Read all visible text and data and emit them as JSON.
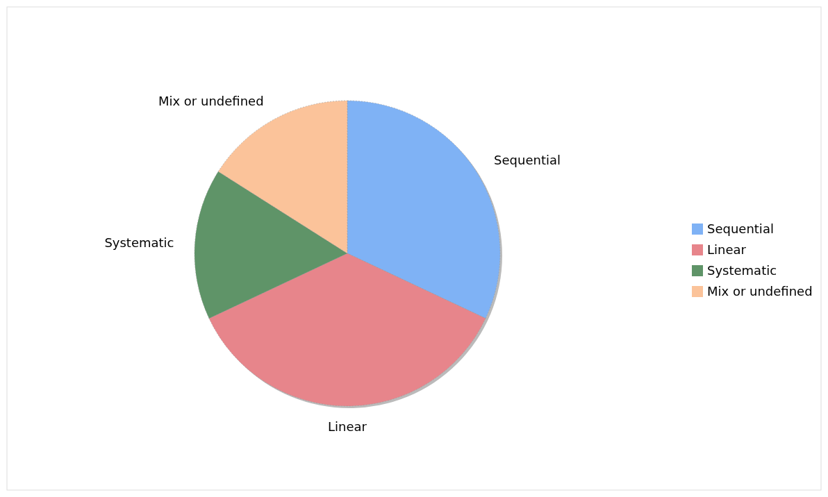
{
  "chart_data": {
    "type": "pie",
    "categories": [
      "Sequential",
      "Linear",
      "Systematic",
      "Mix or undefined"
    ],
    "values": [
      32,
      36,
      16,
      16
    ],
    "colors": [
      "#7fb2f5",
      "#e7858b",
      "#5f9468",
      "#fbc39a"
    ],
    "legend": "right"
  }
}
